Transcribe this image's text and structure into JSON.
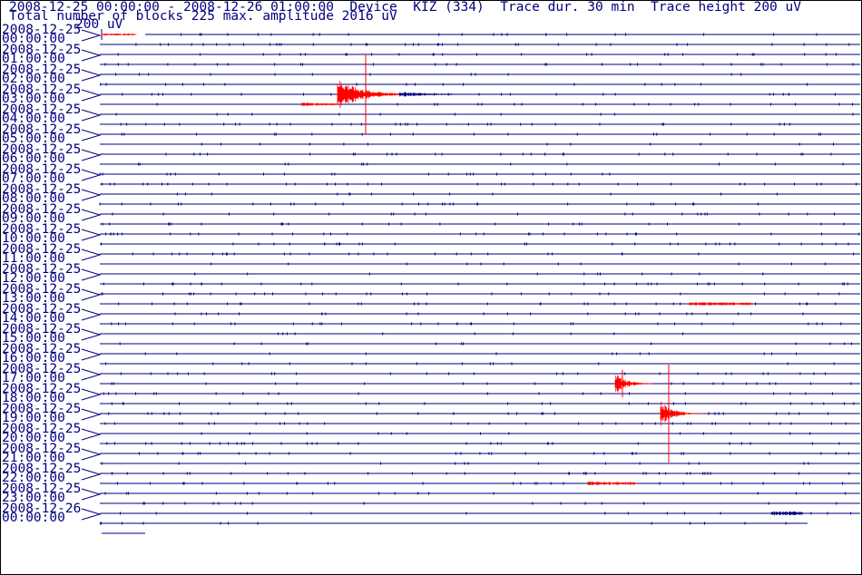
{
  "header": {
    "line1": "2008-12-25 00:00:00 - 2008-12-26 01:00:00  Device  KIZ (334)  Trace dur. 30 min  Trace height 200 uV",
    "line2": "Total number of blocks 225 max. amplitude 2016 uV",
    "scale": "200 uV"
  },
  "rows": [
    {
      "date": "2008-12-25",
      "time": "00:00:00"
    },
    {
      "date": "2008-12-25",
      "time": "01:00:00"
    },
    {
      "date": "2008-12-25",
      "time": "02:00:00"
    },
    {
      "date": "2008-12-25",
      "time": "03:00:00"
    },
    {
      "date": "2008-12-25",
      "time": "04:00:00"
    },
    {
      "date": "2008-12-25",
      "time": "05:00:00"
    },
    {
      "date": "2008-12-25",
      "time": "06:00:00"
    },
    {
      "date": "2008-12-25",
      "time": "07:00:00"
    },
    {
      "date": "2008-12-25",
      "time": "08:00:00"
    },
    {
      "date": "2008-12-25",
      "time": "09:00:00"
    },
    {
      "date": "2008-12-25",
      "time": "10:00:00"
    },
    {
      "date": "2008-12-25",
      "time": "11:00:00"
    },
    {
      "date": "2008-12-25",
      "time": "12:00:00"
    },
    {
      "date": "2008-12-25",
      "time": "13:00:00"
    },
    {
      "date": "2008-12-25",
      "time": "14:00:00"
    },
    {
      "date": "2008-12-25",
      "time": "15:00:00"
    },
    {
      "date": "2008-12-25",
      "time": "16:00:00"
    },
    {
      "date": "2008-12-25",
      "time": "17:00:00"
    },
    {
      "date": "2008-12-25",
      "time": "18:00:00"
    },
    {
      "date": "2008-12-25",
      "time": "19:00:00"
    },
    {
      "date": "2008-12-25",
      "time": "20:00:00"
    },
    {
      "date": "2008-12-25",
      "time": "21:00:00"
    },
    {
      "date": "2008-12-25",
      "time": "22:00:00"
    },
    {
      "date": "2008-12-25",
      "time": "23:00:00"
    },
    {
      "date": "2008-12-26",
      "time": "00:00:00"
    }
  ]
}
